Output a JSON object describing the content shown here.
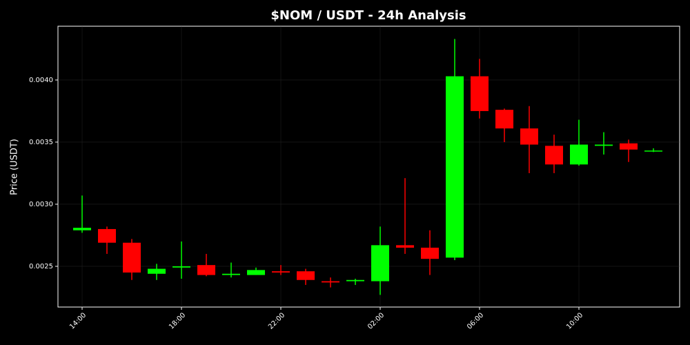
{
  "chart_data": {
    "type": "candlestick",
    "title": "$NOM / USDT - 24h Analysis",
    "y_label": "Price (USDT)",
    "categories": [
      "14:00",
      null,
      null,
      null,
      "18:00",
      null,
      null,
      null,
      "22:00",
      null,
      null,
      null,
      "02:00",
      null,
      null,
      null,
      "06:00",
      null,
      null,
      null,
      "10:00",
      null,
      null,
      null
    ],
    "open": [
      0.00279,
      0.0028,
      0.00269,
      0.00244,
      0.00249,
      0.00251,
      0.00243,
      0.00243,
      0.00246,
      0.00246,
      0.00238,
      0.00238,
      0.00238,
      0.00267,
      0.00265,
      0.00257,
      0.00403,
      0.00376,
      0.00361,
      0.00347,
      0.00332,
      0.00347,
      0.00349,
      0.003428
    ],
    "high": [
      0.00307,
      0.00282,
      0.00272,
      0.00252,
      0.0027,
      0.0026,
      0.00253,
      0.00249,
      0.00251,
      0.00248,
      0.00241,
      0.0024,
      0.00282,
      0.00321,
      0.00279,
      0.00433,
      0.00417,
      0.00377,
      0.00379,
      0.00356,
      0.00368,
      0.00358,
      0.00352,
      0.00345
    ],
    "low": [
      0.00277,
      0.0026,
      0.00239,
      0.00239,
      0.0024,
      0.00242,
      0.00241,
      0.00243,
      0.00243,
      0.00235,
      0.00233,
      0.00235,
      0.00227,
      0.0026,
      0.00243,
      0.00255,
      0.00369,
      0.0035,
      0.00325,
      0.00325,
      0.00331,
      0.0034,
      0.00334,
      0.00342
    ],
    "close": [
      0.00281,
      0.00269,
      0.00245,
      0.00248,
      0.0025,
      0.00243,
      0.00244,
      0.00247,
      0.00245,
      0.00239,
      0.00237,
      0.00239,
      0.00267,
      0.00265,
      0.00256,
      0.00403,
      0.00375,
      0.00361,
      0.00348,
      0.00332,
      0.00348,
      0.00348,
      0.00344,
      0.003432
    ],
    "up_color": "#00ff00",
    "down_color": "#ff0000",
    "ylim": [
      0.002172,
      0.004433
    ],
    "yticks": [
      0.0025,
      {
        "value": 0.003,
        "label": "0.0030"
      },
      0.0035,
      {
        "value": 0.004,
        "label": "0.0040"
      }
    ],
    "grid": true
  }
}
